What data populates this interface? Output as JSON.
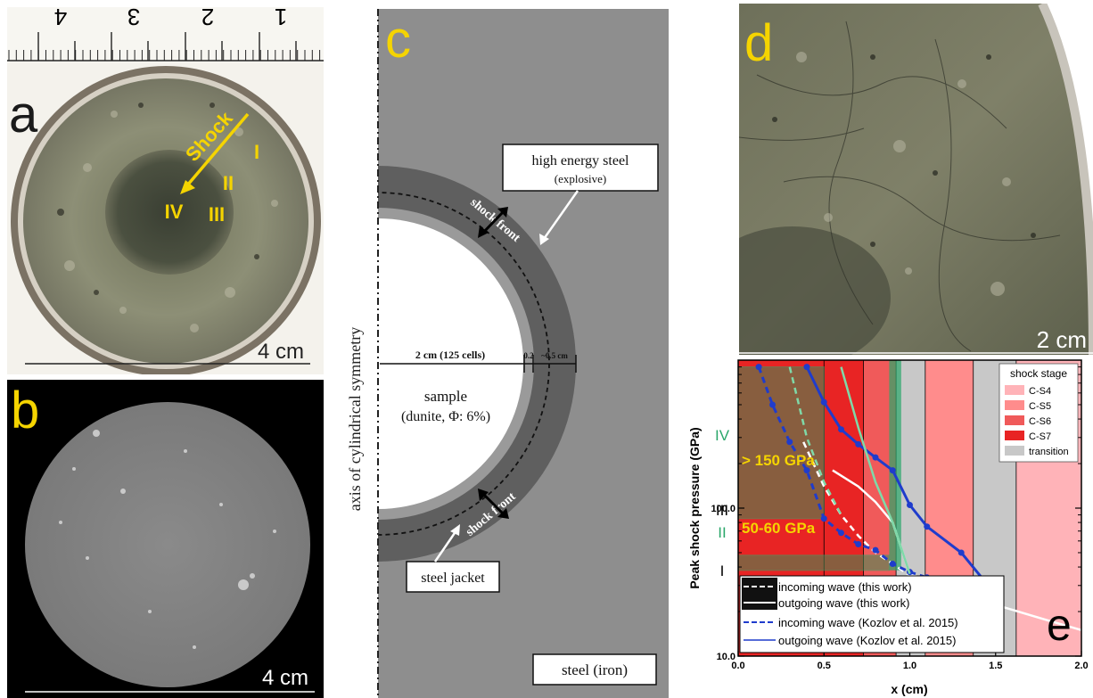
{
  "panel_a": {
    "label": "a",
    "ruler_numbers": [
      "4",
      "3",
      "2",
      "1"
    ],
    "shock_label": "Shock",
    "zones": [
      "I",
      "II",
      "III",
      "IV"
    ],
    "scale_text": "4 cm",
    "colors": {
      "annotation": "#f5d400"
    }
  },
  "panel_b": {
    "label": "b",
    "scale_text": "4 cm"
  },
  "panel_c": {
    "label": "c",
    "axis_label": "axis of cylindrical symmetry",
    "explosive_label": "high energy steel",
    "explosive_sub": "(explosive)",
    "shock_front_label": "shock front",
    "dim_sample": "2 cm (125 cells)",
    "dim_jacket": "0.2",
    "dim_explosive": "~0.5 cm",
    "sample_label": "sample",
    "sample_sub": "(dunite, Φ: 6%)",
    "jacket_label": "steel jacket",
    "iron_label": "steel (iron)"
  },
  "panel_d": {
    "label": "d",
    "scale_text": "2 cm"
  },
  "panel_e": {
    "label": "e",
    "ylabel": "Peak shock pressure (GPa)",
    "xlabel": "x (cm)",
    "x_ticks": [
      "0.0",
      "0.5",
      "1.0",
      "1.5",
      "2.0"
    ],
    "y_ticks": [
      "10.0",
      "100.0"
    ],
    "zone_labels": [
      "IV",
      "III",
      "II",
      "I"
    ],
    "region_labels": [
      "> 150 GPa",
      "50-60 GPa"
    ],
    "legend_title": "shock stage",
    "legend_stages": [
      {
        "name": "C-S4",
        "color": "#ffb3b8"
      },
      {
        "name": "C-S5",
        "color": "#ff8c8c"
      },
      {
        "name": "C-S6",
        "color": "#f05a5a"
      },
      {
        "name": "C-S7",
        "color": "#e82424"
      },
      {
        "name": "transition",
        "color": "#c8c8c8"
      }
    ],
    "lines_legend": [
      "incoming wave (this work)",
      "outgoing wave (this work)",
      "incoming wave (Kozlov et al. 2015)",
      "outgoing wave (Kozlov et al. 2015)"
    ],
    "colors": {
      "kozlov": "#1f3ccc",
      "green": "#2aa76a",
      "label_yellow": "#f5d400"
    }
  },
  "chart_data": {
    "type": "line",
    "xlabel": "x (cm)",
    "ylabel": "Peak shock pressure (GPa)",
    "xlim": [
      0.0,
      2.0
    ],
    "ylim": [
      10,
      1000
    ],
    "y_scale": "log",
    "legend": "top-right",
    "series": [
      {
        "name": "incoming wave (this work)",
        "style": "dashed",
        "color": "#ffffff",
        "x": [
          0.38,
          0.5,
          0.6,
          0.7,
          0.8,
          0.9,
          1.0
        ],
        "y": [
          280,
          140,
          90,
          65,
          50,
          42,
          35
        ]
      },
      {
        "name": "outgoing wave (this work)",
        "style": "solid",
        "color": "#ffffff",
        "x": [
          0.55,
          0.7,
          0.8,
          0.9,
          1.0,
          1.2,
          1.4,
          1.6,
          1.8,
          2.0
        ],
        "y": [
          180,
          140,
          110,
          80,
          36,
          29,
          24,
          20.5,
          17.5,
          15
        ]
      },
      {
        "name": "incoming wave (Kozlov et al. 2015)",
        "style": "dashed",
        "color": "#1f3ccc",
        "x": [
          0.12,
          0.2,
          0.3,
          0.4,
          0.5,
          0.6,
          0.7,
          0.8,
          0.9,
          1.0,
          1.1,
          1.2,
          1.3,
          1.5
        ],
        "y": [
          900,
          500,
          280,
          180,
          85,
          68,
          57,
          52,
          42,
          37,
          34,
          31,
          27,
          23
        ]
      },
      {
        "name": "outgoing wave (Kozlov et al. 2015)",
        "style": "solid",
        "color": "#1f3ccc",
        "x": [
          0.4,
          0.5,
          0.6,
          0.7,
          0.8,
          0.9,
          1.0,
          1.1,
          1.3,
          1.5
        ],
        "y": [
          900,
          520,
          340,
          270,
          220,
          180,
          105,
          75,
          50,
          26
        ]
      }
    ],
    "shock_stage_bands": [
      {
        "stage": "C-S7",
        "x": [
          0.0,
          0.5
        ]
      },
      {
        "stage": "C-S7",
        "x": [
          0.5,
          0.73
        ]
      },
      {
        "stage": "C-S6",
        "x": [
          0.73,
          0.92
        ]
      },
      {
        "stage": "transition",
        "x": [
          0.92,
          1.09
        ]
      },
      {
        "stage": "C-S5",
        "x": [
          1.09,
          1.37
        ]
      },
      {
        "stage": "transition",
        "x": [
          1.37,
          1.62
        ]
      },
      {
        "stage": "C-S4",
        "x": [
          1.62,
          2.0
        ]
      }
    ]
  }
}
